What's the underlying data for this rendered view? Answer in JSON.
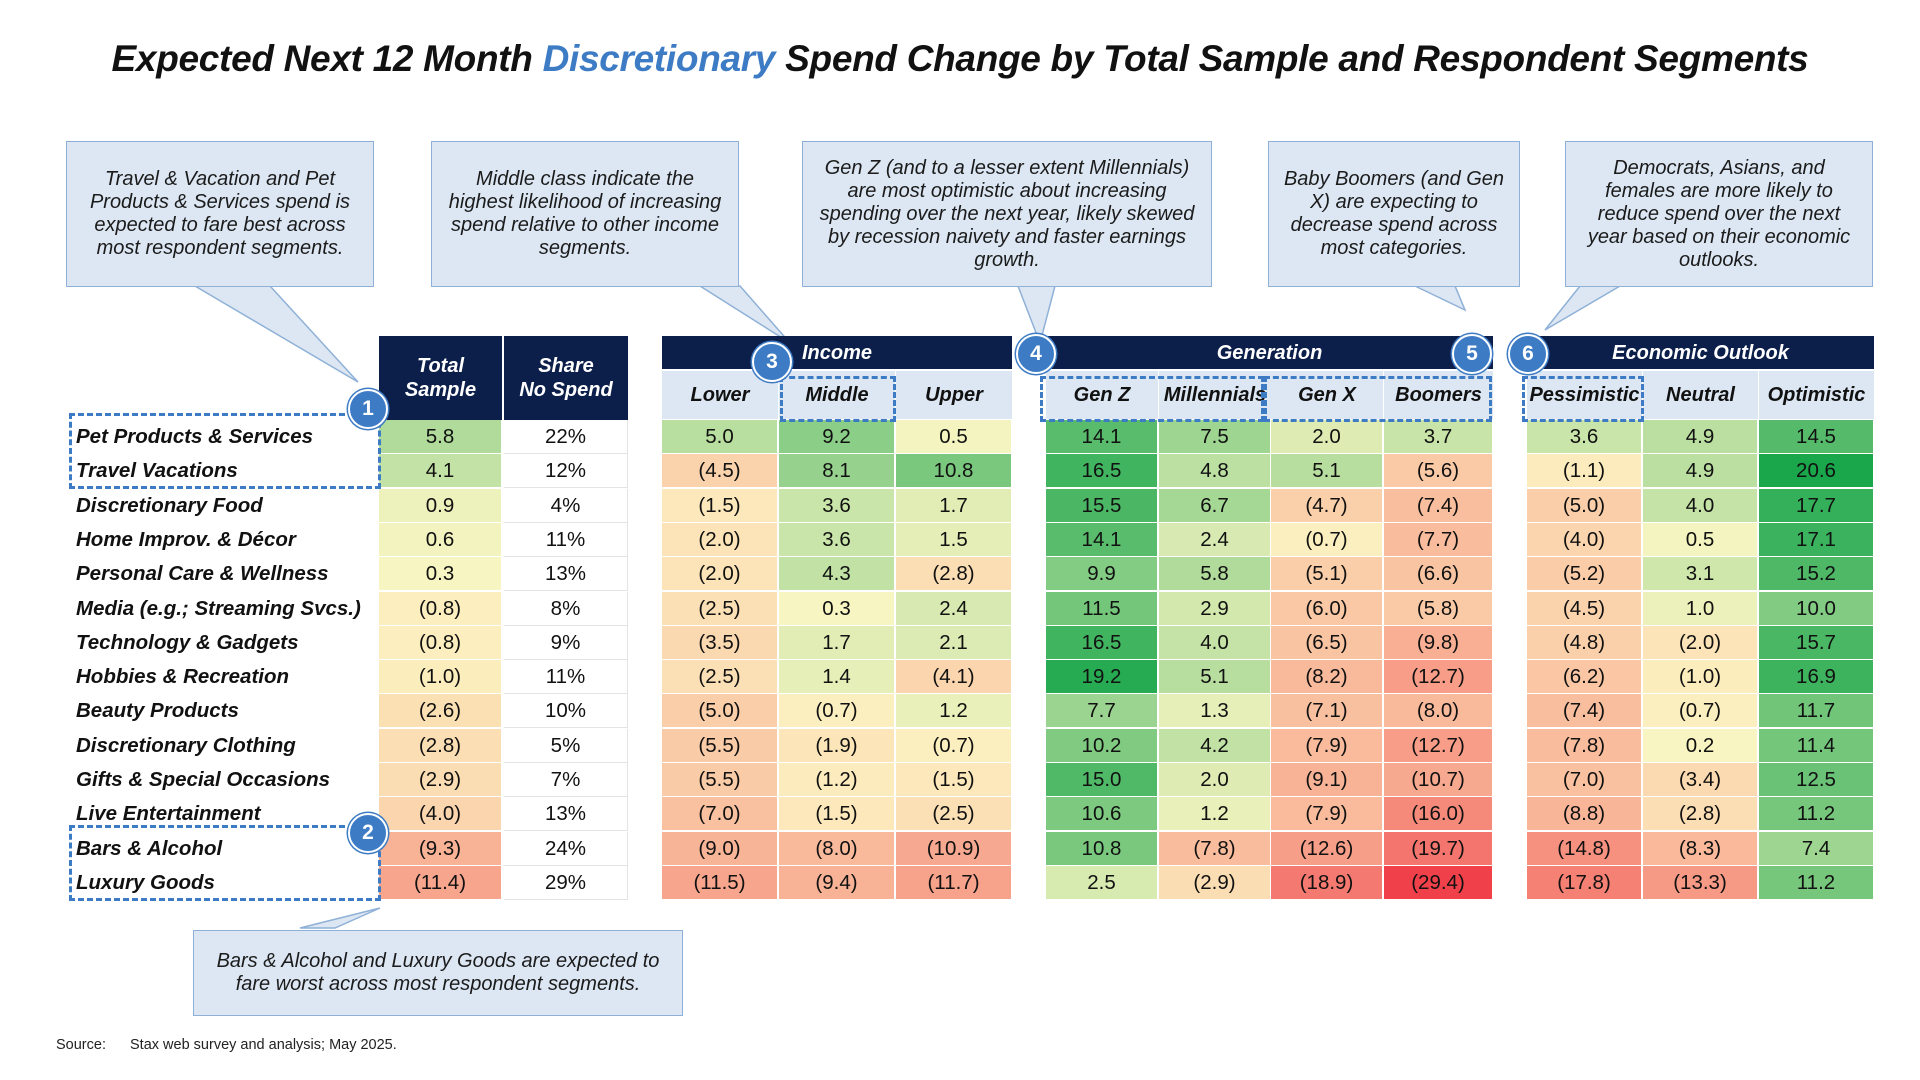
{
  "title": {
    "prefix": "Expected Next 12 Month ",
    "highlight": "Discretionary",
    "suffix": " Spend Change by Total Sample and Respondent Segments"
  },
  "callouts": [
    "Travel & Vacation and Pet Products & Services spend is expected to fare best across most respondent segments.",
    "Middle class indicate the highest likelihood of increasing spend relative to other income segments.",
    "Gen Z (and to a lesser extent Millennials) are most optimistic about increasing spending over the next year, likely skewed by recession naivety and faster earnings growth.",
    "Baby Boomers (and Gen X) are expecting to decrease spend across most categories.",
    "Democrats, Asians, and females are more likely to reduce spend over the next year based on their economic outlooks.",
    "Bars & Alcohol and Luxury Goods are expected to fare worst across most respondent segments."
  ],
  "markers": [
    "1",
    "2",
    "3",
    "4",
    "5",
    "6"
  ],
  "source": {
    "label": "Source:",
    "text": "Stax web survey and analysis; May 2025."
  },
  "colors": {
    "navy": "#0c1f4a",
    "accent": "#3d7cc4",
    "light_blue": "#dce7f3",
    "green": "#1aa64b",
    "yellow": "#fdf7c4",
    "red": "#f0404a"
  },
  "chart_data": {
    "type": "table",
    "title": "Expected Next 12 Month Discretionary Spend Change by Total Sample and Respondent Segments",
    "group_headers": [
      {
        "label": "Total\nSample",
        "columns": [
          "Total Sample"
        ]
      },
      {
        "label": "Share\nNo Spend",
        "columns": [
          "Share No Spend"
        ]
      },
      {
        "label": "Income",
        "columns": [
          "Lower",
          "Middle",
          "Upper"
        ]
      },
      {
        "label": "Generation",
        "columns": [
          "Gen Z",
          "Millennials",
          "Gen X",
          "Boomers"
        ]
      },
      {
        "label": "Economic Outlook",
        "columns": [
          "Pessimistic",
          "Neutral",
          "Optimistic"
        ]
      }
    ],
    "sub_columns": [
      "Lower",
      "Middle",
      "Upper",
      "Gen Z",
      "Millennials",
      "Gen X",
      "Boomers",
      "Pessimistic",
      "Neutral",
      "Optimistic"
    ],
    "rows": [
      {
        "label": "Pet Products & Services",
        "total": "5.8",
        "share": "22%",
        "values": [
          "5.0",
          "9.2",
          "0.5",
          "14.1",
          "7.5",
          "2.0",
          "3.7",
          "3.6",
          "4.9",
          "14.5"
        ]
      },
      {
        "label": "Travel Vacations",
        "total": "4.1",
        "share": "12%",
        "values": [
          "(4.5)",
          "8.1",
          "10.8",
          "16.5",
          "4.8",
          "5.1",
          "(5.6)",
          "(1.1)",
          "4.9",
          "20.6"
        ]
      },
      {
        "label": "Discretionary Food",
        "total": "0.9",
        "share": "4%",
        "values": [
          "(1.5)",
          "3.6",
          "1.7",
          "15.5",
          "6.7",
          "(4.7)",
          "(7.4)",
          "(5.0)",
          "4.0",
          "17.7"
        ]
      },
      {
        "label": "Home Improv. & Décor",
        "total": "0.6",
        "share": "11%",
        "values": [
          "(2.0)",
          "3.6",
          "1.5",
          "14.1",
          "2.4",
          "(0.7)",
          "(7.7)",
          "(4.0)",
          "0.5",
          "17.1"
        ]
      },
      {
        "label": "Personal Care & Wellness",
        "total": "0.3",
        "share": "13%",
        "values": [
          "(2.0)",
          "4.3",
          "(2.8)",
          "9.9",
          "5.8",
          "(5.1)",
          "(6.6)",
          "(5.2)",
          "3.1",
          "15.2"
        ]
      },
      {
        "label": "Media (e.g.; Streaming Svcs.)",
        "total": "(0.8)",
        "share": "8%",
        "values": [
          "(2.5)",
          "0.3",
          "2.4",
          "11.5",
          "2.9",
          "(6.0)",
          "(5.8)",
          "(4.5)",
          "1.0",
          "10.0"
        ]
      },
      {
        "label": "Technology & Gadgets",
        "total": "(0.8)",
        "share": "9%",
        "values": [
          "(3.5)",
          "1.7",
          "2.1",
          "16.5",
          "4.0",
          "(6.5)",
          "(9.8)",
          "(4.8)",
          "(2.0)",
          "15.7"
        ]
      },
      {
        "label": "Hobbies & Recreation",
        "total": "(1.0)",
        "share": "11%",
        "values": [
          "(2.5)",
          "1.4",
          "(4.1)",
          "19.2",
          "5.1",
          "(8.2)",
          "(12.7)",
          "(6.2)",
          "(1.0)",
          "16.9"
        ]
      },
      {
        "label": "Beauty Products",
        "total": "(2.6)",
        "share": "10%",
        "values": [
          "(5.0)",
          "(0.7)",
          "1.2",
          "7.7",
          "1.3",
          "(7.1)",
          "(8.0)",
          "(7.4)",
          "(0.7)",
          "11.7"
        ]
      },
      {
        "label": "Discretionary Clothing",
        "total": "(2.8)",
        "share": "5%",
        "values": [
          "(5.5)",
          "(1.9)",
          "(0.7)",
          "10.2",
          "4.2",
          "(7.9)",
          "(12.7)",
          "(7.8)",
          "0.2",
          "11.4"
        ]
      },
      {
        "label": "Gifts & Special Occasions",
        "total": "(2.9)",
        "share": "7%",
        "values": [
          "(5.5)",
          "(1.2)",
          "(1.5)",
          "15.0",
          "2.0",
          "(9.1)",
          "(10.7)",
          "(7.0)",
          "(3.4)",
          "12.5"
        ]
      },
      {
        "label": "Live Entertainment",
        "total": "(4.0)",
        "share": "13%",
        "values": [
          "(7.0)",
          "(1.5)",
          "(2.5)",
          "10.6",
          "1.2",
          "(7.9)",
          "(16.0)",
          "(8.8)",
          "(2.8)",
          "11.2"
        ]
      },
      {
        "label": "Bars & Alcohol",
        "total": "(9.3)",
        "share": "24%",
        "values": [
          "(9.0)",
          "(8.0)",
          "(10.9)",
          "10.8",
          "(7.8)",
          "(12.6)",
          "(19.7)",
          "(14.8)",
          "(8.3)",
          "7.4"
        ]
      },
      {
        "label": "Luxury Goods",
        "total": "(11.4)",
        "share": "29%",
        "values": [
          "(11.5)",
          "(9.4)",
          "(11.7)",
          "2.5",
          "(2.9)",
          "(18.9)",
          "(29.4)",
          "(17.8)",
          "(13.3)",
          "11.2"
        ]
      }
    ],
    "color_scale": {
      "min": -29.4,
      "mid": 0,
      "max": 20.6
    }
  }
}
